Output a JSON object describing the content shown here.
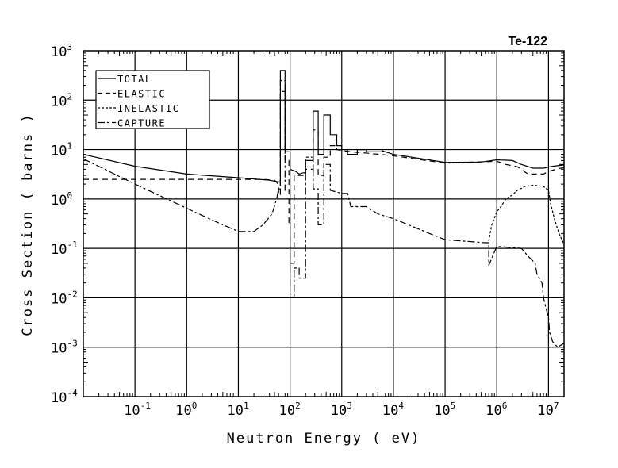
{
  "chart_data": {
    "type": "line",
    "title": "Te-122",
    "xlabel": "Neutron Energy ( eV)",
    "ylabel": "Cross Section ( barns )",
    "xscale": "log",
    "yscale": "log",
    "xlim": [
      0.01,
      20000000
    ],
    "ylim": [
      0.0001,
      1000
    ],
    "grid": true,
    "legend_position": "top-left",
    "x_ticks": [
      {
        "base": "10",
        "exp": "-1",
        "v": 0.1
      },
      {
        "base": "10",
        "exp": "0",
        "v": 1
      },
      {
        "base": "10",
        "exp": "1",
        "v": 10
      },
      {
        "base": "10",
        "exp": "2",
        "v": 100
      },
      {
        "base": "10",
        "exp": "3",
        "v": 1000
      },
      {
        "base": "10",
        "exp": "4",
        "v": 10000
      },
      {
        "base": "10",
        "exp": "5",
        "v": 100000
      },
      {
        "base": "10",
        "exp": "6",
        "v": 1000000
      },
      {
        "base": "10",
        "exp": "7",
        "v": 10000000
      }
    ],
    "y_ticks": [
      {
        "base": "10",
        "exp": "3",
        "v": 1000
      },
      {
        "base": "10",
        "exp": "2",
        "v": 100
      },
      {
        "base": "10",
        "exp": "1",
        "v": 10
      },
      {
        "base": "10",
        "exp": "0",
        "v": 1
      },
      {
        "base": "10",
        "exp": "-1",
        "v": 0.1
      },
      {
        "base": "10",
        "exp": "-2",
        "v": 0.01
      },
      {
        "base": "10",
        "exp": "-3",
        "v": 0.001
      },
      {
        "base": "10",
        "exp": "-4",
        "v": 0.0001
      }
    ],
    "series": [
      {
        "name": "TOTAL",
        "dash": "",
        "points": [
          [
            0.01,
            8
          ],
          [
            0.1,
            4.6
          ],
          [
            1,
            3.2
          ],
          [
            10,
            2.7
          ],
          [
            40,
            2.4
          ],
          [
            62,
            2.2
          ],
          [
            62,
            2.2
          ],
          [
            65,
            2.2
          ],
          [
            65,
            400
          ],
          [
            80,
            400
          ],
          [
            80,
            9
          ],
          [
            100,
            9
          ],
          [
            100,
            4
          ],
          [
            130,
            3.6
          ],
          [
            150,
            3.2
          ],
          [
            180,
            3.4
          ],
          [
            200,
            3.4
          ],
          [
            200,
            6
          ],
          [
            280,
            6
          ],
          [
            280,
            60
          ],
          [
            350,
            60
          ],
          [
            350,
            8
          ],
          [
            450,
            8
          ],
          [
            450,
            50
          ],
          [
            600,
            50
          ],
          [
            600,
            20
          ],
          [
            800,
            20
          ],
          [
            800,
            12
          ],
          [
            1000,
            12
          ],
          [
            1000,
            10
          ],
          [
            1300,
            10
          ],
          [
            1300,
            8
          ],
          [
            2000,
            8
          ],
          [
            2000,
            10
          ],
          [
            3000,
            10
          ],
          [
            3000,
            9
          ],
          [
            6000,
            9
          ],
          [
            6000,
            9.5
          ],
          [
            10000,
            8
          ],
          [
            100000,
            5.5
          ],
          [
            500000,
            5.6
          ],
          [
            1000000,
            6.2
          ],
          [
            2000000,
            6
          ],
          [
            3000000,
            5
          ],
          [
            5000000,
            4.2
          ],
          [
            8000000,
            4.2
          ],
          [
            12000000,
            4.6
          ],
          [
            20000000,
            4.9
          ]
        ]
      },
      {
        "name": "ELASTIC",
        "dash": "7,5",
        "points": [
          [
            0.01,
            2.5
          ],
          [
            1,
            2.5
          ],
          [
            30,
            2.5
          ],
          [
            50,
            2.4
          ],
          [
            55,
            2.2
          ],
          [
            60,
            1.8
          ],
          [
            60,
            1.2
          ],
          [
            65,
            1.2
          ],
          [
            65,
            150
          ],
          [
            80,
            150
          ],
          [
            80,
            6
          ],
          [
            95,
            6
          ],
          [
            95,
            0.3
          ],
          [
            100,
            0.3
          ],
          [
            100,
            0.05
          ],
          [
            120,
            0.05
          ],
          [
            120,
            3
          ],
          [
            200,
            3
          ],
          [
            200,
            4
          ],
          [
            280,
            4
          ],
          [
            280,
            25
          ],
          [
            350,
            25
          ],
          [
            350,
            3
          ],
          [
            450,
            3
          ],
          [
            450,
            7
          ],
          [
            600,
            7
          ],
          [
            600,
            12
          ],
          [
            800,
            12
          ],
          [
            800,
            10
          ],
          [
            1500,
            9
          ],
          [
            3000,
            8.5
          ],
          [
            10000,
            7.5
          ],
          [
            100000,
            5.3
          ],
          [
            1000000,
            5.8
          ],
          [
            1500000,
            5
          ],
          [
            2500000,
            4.5
          ],
          [
            4000000,
            3.2
          ],
          [
            8000000,
            3.2
          ],
          [
            10000000,
            3.6
          ],
          [
            15000000,
            4.1
          ],
          [
            20000000,
            4.3
          ]
        ]
      },
      {
        "name": "INELASTIC",
        "dash": "3,2",
        "points": [
          [
            700000,
            0.14
          ],
          [
            800000,
            0.3
          ],
          [
            1000000,
            0.55
          ],
          [
            1200000,
            0.7
          ],
          [
            1500000,
            1
          ],
          [
            2000000,
            1.2
          ],
          [
            2500000,
            1.5
          ],
          [
            3500000,
            1.8
          ],
          [
            5000000,
            1.9
          ],
          [
            8000000,
            1.8
          ],
          [
            10000000,
            1.5
          ],
          [
            11000000,
            0.8
          ],
          [
            13000000,
            0.4
          ],
          [
            16000000,
            0.2
          ],
          [
            20000000,
            0.12
          ]
        ]
      },
      {
        "name": "CAPTURE",
        "dash": "9,3,3,3",
        "points": [
          [
            0.01,
            6.5
          ],
          [
            0.1,
            2
          ],
          [
            1,
            0.65
          ],
          [
            3,
            0.38
          ],
          [
            10,
            0.22
          ],
          [
            20,
            0.22
          ],
          [
            30,
            0.3
          ],
          [
            45,
            0.5
          ],
          [
            55,
            1
          ],
          [
            60,
            1.6
          ],
          [
            65,
            1.6
          ],
          [
            65,
            250
          ],
          [
            80,
            250
          ],
          [
            80,
            1.5
          ],
          [
            100,
            1.5
          ],
          [
            100,
            0.01
          ],
          [
            120,
            0.01
          ],
          [
            120,
            0.04
          ],
          [
            150,
            0.04
          ],
          [
            150,
            0.025
          ],
          [
            200,
            0.025
          ],
          [
            200,
            7
          ],
          [
            280,
            7
          ],
          [
            280,
            1.6
          ],
          [
            350,
            1.6
          ],
          [
            350,
            0.3
          ],
          [
            450,
            0.3
          ],
          [
            450,
            5
          ],
          [
            600,
            5
          ],
          [
            600,
            1.5
          ],
          [
            1000,
            1.3
          ],
          [
            1300,
            1.3
          ],
          [
            1500,
            0.7
          ],
          [
            3000,
            0.7
          ],
          [
            5000,
            0.5
          ],
          [
            10000,
            0.4
          ],
          [
            50000,
            0.2
          ],
          [
            100000,
            0.15
          ],
          [
            600000,
            0.13
          ],
          [
            700000,
            0.13
          ],
          [
            700000,
            0.045
          ],
          [
            1000000,
            0.11
          ],
          [
            1000000,
            0.11
          ],
          [
            3000000,
            0.1
          ],
          [
            4000000,
            0.07
          ],
          [
            5500000,
            0.05
          ],
          [
            6000000,
            0.03
          ],
          [
            7500000,
            0.02
          ],
          [
            8000000,
            0.01
          ],
          [
            9000000,
            0.006
          ],
          [
            10000000,
            0.004
          ],
          [
            10500000,
            0.002
          ],
          [
            12000000,
            0.0013
          ],
          [
            15000000,
            0.001
          ],
          [
            20000000,
            0.0012
          ]
        ]
      }
    ]
  }
}
